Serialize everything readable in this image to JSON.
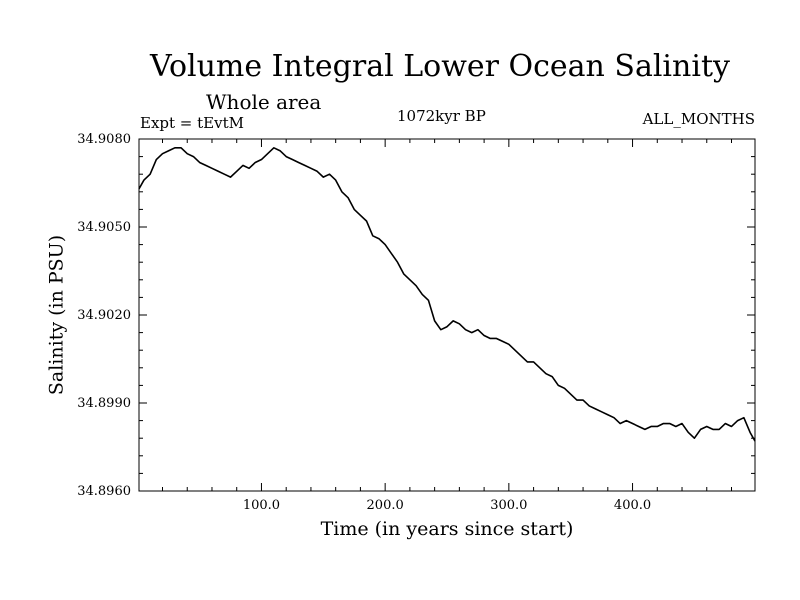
{
  "chart_data": {
    "type": "line",
    "title": "Volume Integral Lower Ocean Salinity",
    "subtitle": "Whole area",
    "experiment": "Expt = tEvtM",
    "period": "1072kyr BP",
    "months": "ALL_MONTHS",
    "xlabel": "Time (in years since start)",
    "ylabel": "Salinity (in PSU)",
    "xlim": [
      1,
      499
    ],
    "ylim": [
      34.896,
      34.908
    ],
    "xticks": [
      100,
      200,
      300,
      400
    ],
    "xtick_labels": [
      "100.0",
      "200.0",
      "300.0",
      "400.0"
    ],
    "yticks": [
      34.896,
      34.899,
      34.902,
      34.905,
      34.908
    ],
    "ytick_labels": [
      "34.8960",
      "34.8990",
      "34.9020",
      "34.9050",
      "34.9080"
    ],
    "series": [
      {
        "name": "Lower Ocean Salinity",
        "x": [
          1,
          5,
          10,
          15,
          20,
          25,
          30,
          35,
          40,
          45,
          50,
          55,
          60,
          65,
          70,
          75,
          80,
          85,
          90,
          95,
          100,
          105,
          110,
          115,
          120,
          125,
          130,
          135,
          140,
          145,
          150,
          155,
          160,
          165,
          170,
          175,
          180,
          185,
          190,
          195,
          200,
          205,
          210,
          215,
          220,
          225,
          230,
          235,
          240,
          245,
          250,
          255,
          260,
          265,
          270,
          275,
          280,
          285,
          290,
          295,
          300,
          305,
          310,
          315,
          320,
          325,
          330,
          335,
          340,
          345,
          350,
          355,
          360,
          365,
          370,
          375,
          380,
          385,
          390,
          395,
          400,
          405,
          410,
          415,
          420,
          425,
          430,
          435,
          440,
          445,
          450,
          455,
          460,
          465,
          470,
          475,
          480,
          485,
          490,
          495,
          499
        ],
        "y": [
          34.9063,
          34.9066,
          34.9068,
          34.9073,
          34.9075,
          34.9076,
          34.9077,
          34.9077,
          34.9075,
          34.9074,
          34.9072,
          34.9071,
          34.907,
          34.9069,
          34.9068,
          34.9067,
          34.9069,
          34.9071,
          34.907,
          34.9072,
          34.9073,
          34.9075,
          34.9077,
          34.9076,
          34.9074,
          34.9073,
          34.9072,
          34.9071,
          34.907,
          34.9069,
          34.9067,
          34.9068,
          34.9066,
          34.9062,
          34.906,
          34.9056,
          34.9054,
          34.9052,
          34.9047,
          34.9046,
          34.9044,
          34.9041,
          34.9038,
          34.9034,
          34.9032,
          34.903,
          34.9027,
          34.9025,
          34.9018,
          34.9015,
          34.9016,
          34.9018,
          34.9017,
          34.9015,
          34.9014,
          34.9015,
          34.9013,
          34.9012,
          34.9012,
          34.9011,
          34.901,
          34.9008,
          34.9006,
          34.9004,
          34.9004,
          34.9002,
          34.9,
          34.8999,
          34.8996,
          34.8995,
          34.8993,
          34.8991,
          34.8991,
          34.8989,
          34.8988,
          34.8987,
          34.8986,
          34.8985,
          34.8983,
          34.8984,
          34.8983,
          34.8982,
          34.8981,
          34.8982,
          34.8982,
          34.8983,
          34.8983,
          34.8982,
          34.8983,
          34.898,
          34.8978,
          34.8981,
          34.8982,
          34.8981,
          34.8981,
          34.8983,
          34.8982,
          34.8984,
          34.8985,
          34.898,
          34.8977
        ]
      }
    ]
  }
}
